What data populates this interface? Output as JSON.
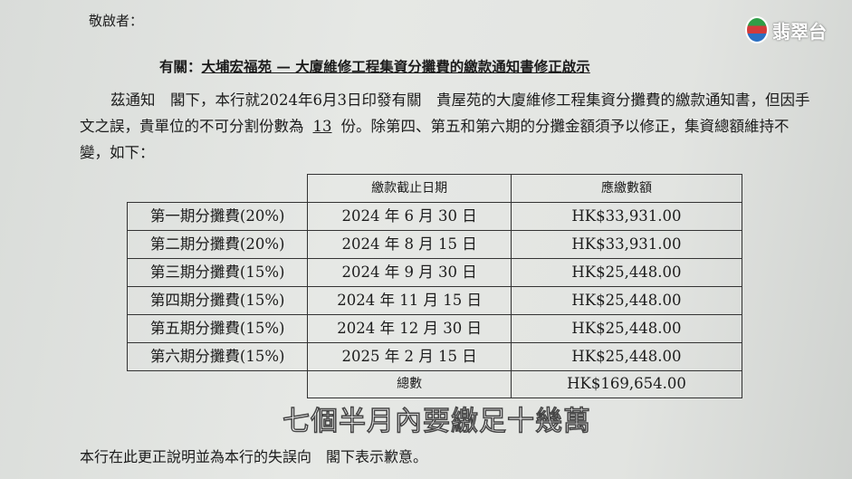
{
  "document": {
    "salutation": "敬啟者：",
    "subject_prefix": "有關：",
    "subject": "大埔宏福苑 — 大廈維修工程集資分攤費的繳款通知書修正啟示",
    "paragraph_part1": "茲通知　閣下，本行就2024年6月3日印發有關　貴屋苑的大廈維修工程集資分攤費的繳款通知書，但因手文之誤，貴單位的不可分割份數為",
    "shares": "13",
    "paragraph_part2": "份。除第四、第五和第六期的分攤金額須予以修正，集資總額維持不變，如下：",
    "closing": "本行在此更正說明並為本行的失誤向　閣下表示歉意。"
  },
  "table": {
    "headers": [
      "",
      "繳款截止日期",
      "應繳數額"
    ],
    "rows": [
      [
        "第一期分攤費(20%)",
        "2024 年 6 月 30 日",
        "HK$33,931.00"
      ],
      [
        "第二期分攤費(20%)",
        "2024 年 8 月 15 日",
        "HK$33,931.00"
      ],
      [
        "第三期分攤費(15%)",
        "2024 年 9 月 30 日",
        "HK$25,448.00"
      ],
      [
        "第四期分攤費(15%)",
        "2024 年 11 月 15 日",
        "HK$25,448.00"
      ],
      [
        "第五期分攤費(15%)",
        "2024 年 12 月 30 日",
        "HK$25,448.00"
      ],
      [
        "第六期分攤費(15%)",
        "2025 年 2 月 15 日",
        "HK$25,448.00"
      ]
    ],
    "total_label": "總數",
    "total_value": "HK$169,654.00"
  },
  "overlay": {
    "caption": "七個半月內要繳足十幾萬",
    "channel_logo": "翡翠台"
  }
}
